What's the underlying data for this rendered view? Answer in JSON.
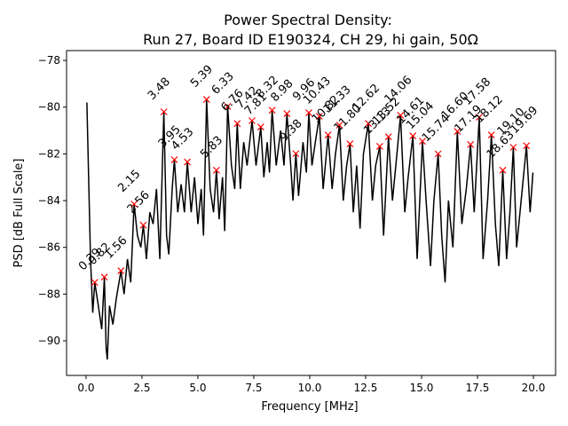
{
  "chart_data": {
    "type": "line",
    "title": "Power Spectral Density:",
    "subtitle": "Run 27, Board ID E190324, CH 29, hi gain, 50Ω",
    "x_label": "Frequency [MHz]",
    "y_label": "PSD [dB Full Scale]",
    "xlim": [
      -0.87,
      20.99
    ],
    "ylim": [
      -91.48,
      -77.58
    ],
    "xticks": [
      {
        "value": 0,
        "label": "0.0"
      },
      {
        "value": 2.5,
        "label": "2.5"
      },
      {
        "value": 5,
        "label": "5.0"
      },
      {
        "value": 7.5,
        "label": "7.5"
      },
      {
        "value": 10,
        "label": "10.0"
      },
      {
        "value": 12.5,
        "label": "12.5"
      },
      {
        "value": 15,
        "label": "15.0"
      },
      {
        "value": 17.5,
        "label": "17.5"
      },
      {
        "value": 20,
        "label": "20.0"
      }
    ],
    "yticks": [
      {
        "value": -90,
        "label": "−90"
      },
      {
        "value": -88,
        "label": "−88"
      },
      {
        "value": -86,
        "label": "−86"
      },
      {
        "value": -84,
        "label": "−84"
      },
      {
        "value": -82,
        "label": "−82"
      },
      {
        "value": -80,
        "label": "−80"
      },
      {
        "value": -78,
        "label": "−78"
      }
    ],
    "series": [
      {
        "color": "#000000",
        "x": [
          0.04,
          0.2,
          0.3,
          0.39,
          0.55,
          0.7,
          0.82,
          0.9,
          0.95,
          1.05,
          1.2,
          1.35,
          1.56,
          1.7,
          1.85,
          2.0,
          2.15,
          2.3,
          2.45,
          2.56,
          2.7,
          2.85,
          3.0,
          3.15,
          3.3,
          3.48,
          3.6,
          3.7,
          3.85,
          3.95,
          4.1,
          4.25,
          4.4,
          4.53,
          4.7,
          4.85,
          5.0,
          5.15,
          5.25,
          5.39,
          5.55,
          5.7,
          5.83,
          5.95,
          6.1,
          6.2,
          6.33,
          6.5,
          6.65,
          6.76,
          6.9,
          7.05,
          7.2,
          7.42,
          7.6,
          7.81,
          7.95,
          8.1,
          8.2,
          8.32,
          8.5,
          8.7,
          8.85,
          8.98,
          9.15,
          9.25,
          9.38,
          9.5,
          9.7,
          9.85,
          9.96,
          10.1,
          10.25,
          10.43,
          10.6,
          10.82,
          11.0,
          11.15,
          11.33,
          11.5,
          11.65,
          11.8,
          11.95,
          12.1,
          12.25,
          12.4,
          12.62,
          12.8,
          12.95,
          13.13,
          13.3,
          13.52,
          13.7,
          13.85,
          14.06,
          14.25,
          14.4,
          14.61,
          14.8,
          15.04,
          15.2,
          15.4,
          15.55,
          15.74,
          15.9,
          16.05,
          16.2,
          16.4,
          16.6,
          16.8,
          17.0,
          17.19,
          17.35,
          17.58,
          17.75,
          17.95,
          18.12,
          18.3,
          18.45,
          18.63,
          18.8,
          18.95,
          19.1,
          19.25,
          19.45,
          19.69,
          19.85,
          19.98
        ],
        "values": [
          -79.8,
          -86.5,
          -88.8,
          -87.5,
          -88.5,
          -89.5,
          -87.3,
          -90.3,
          -90.8,
          -88.5,
          -89.3,
          -88.2,
          -87.0,
          -88.0,
          -86.5,
          -87.5,
          -84.15,
          -85.5,
          -86.0,
          -85.05,
          -86.5,
          -84.5,
          -85.0,
          -83.5,
          -86.5,
          -80.2,
          -85.5,
          -86.3,
          -83.5,
          -82.25,
          -84.5,
          -83.3,
          -84.5,
          -82.35,
          -84.5,
          -83.0,
          -85.0,
          -83.5,
          -85.5,
          -79.67,
          -83.5,
          -84.5,
          -82.7,
          -84.8,
          -83.0,
          -85.3,
          -79.97,
          -82.5,
          -83.5,
          -80.7,
          -83.5,
          -81.5,
          -82.5,
          -80.58,
          -82.5,
          -80.85,
          -83.0,
          -81.5,
          -82.8,
          -80.13,
          -82.5,
          -81.0,
          -82.5,
          -80.28,
          -82.5,
          -84.0,
          -81.99,
          -83.8,
          -81.5,
          -82.8,
          -80.24,
          -82.5,
          -81.5,
          -80.39,
          -83.5,
          -81.19,
          -83.5,
          -82.0,
          -80.77,
          -84.0,
          -82.5,
          -81.57,
          -84.5,
          -82.5,
          -85.2,
          -82.0,
          -80.7,
          -84.0,
          -82.5,
          -81.68,
          -85.5,
          -81.27,
          -84.0,
          -82.5,
          -80.35,
          -84.5,
          -83.0,
          -81.23,
          -86.5,
          -81.46,
          -84.0,
          -86.8,
          -84.0,
          -82.0,
          -85.5,
          -87.5,
          -84.0,
          -86.0,
          -81.04,
          -85.0,
          -83.5,
          -81.6,
          -84.5,
          -80.43,
          -86.5,
          -84.0,
          -81.19,
          -85.0,
          -86.8,
          -82.7,
          -86.5,
          -84.5,
          -81.72,
          -86.0,
          -84.0,
          -81.65,
          -84.5,
          -82.8
        ]
      },
      {
        "type": "scatter",
        "color": "#ff0000",
        "x": [
          0.39,
          0.82,
          1.56,
          2.15,
          2.56,
          3.48,
          3.95,
          4.53,
          5.39,
          5.83,
          6.33,
          6.76,
          7.42,
          7.81,
          8.32,
          8.98,
          9.38,
          9.96,
          10.43,
          10.82,
          11.33,
          11.8,
          12.62,
          13.13,
          13.52,
          14.06,
          14.61,
          15.04,
          15.74,
          16.6,
          17.19,
          17.58,
          18.12,
          18.63,
          19.1,
          19.69
        ],
        "values": [
          -87.5,
          -87.27,
          -87.0,
          -84.15,
          -85.05,
          -80.2,
          -82.25,
          -82.35,
          -79.67,
          -82.7,
          -79.97,
          -80.7,
          -80.58,
          -80.85,
          -80.13,
          -80.28,
          -81.99,
          -80.24,
          -80.39,
          -81.19,
          -80.77,
          -81.57,
          -80.7,
          -81.68,
          -81.27,
          -80.35,
          -81.23,
          -81.46,
          -82.0,
          -81.04,
          -81.6,
          -80.43,
          -81.19,
          -82.7,
          -81.72,
          -81.65
        ],
        "x_labels": [
          "0.39",
          "0.82",
          "1.56",
          "2.15",
          "2.56",
          "3.48",
          "3.95",
          "4.53",
          "5.39",
          "5.83",
          "6.33",
          "6.76",
          "7.42",
          "7.81",
          "8.32",
          "8.98",
          "9.38",
          "9.96",
          "10.43",
          "10.82",
          "11.33",
          "11.80",
          "12.62",
          "13.13",
          "13.52",
          "14.06",
          "14.61",
          "15.04",
          "15.74",
          "16.60",
          "17.19",
          "17.58",
          "18.12",
          "18.63",
          "19.10",
          "19.69"
        ]
      }
    ]
  }
}
